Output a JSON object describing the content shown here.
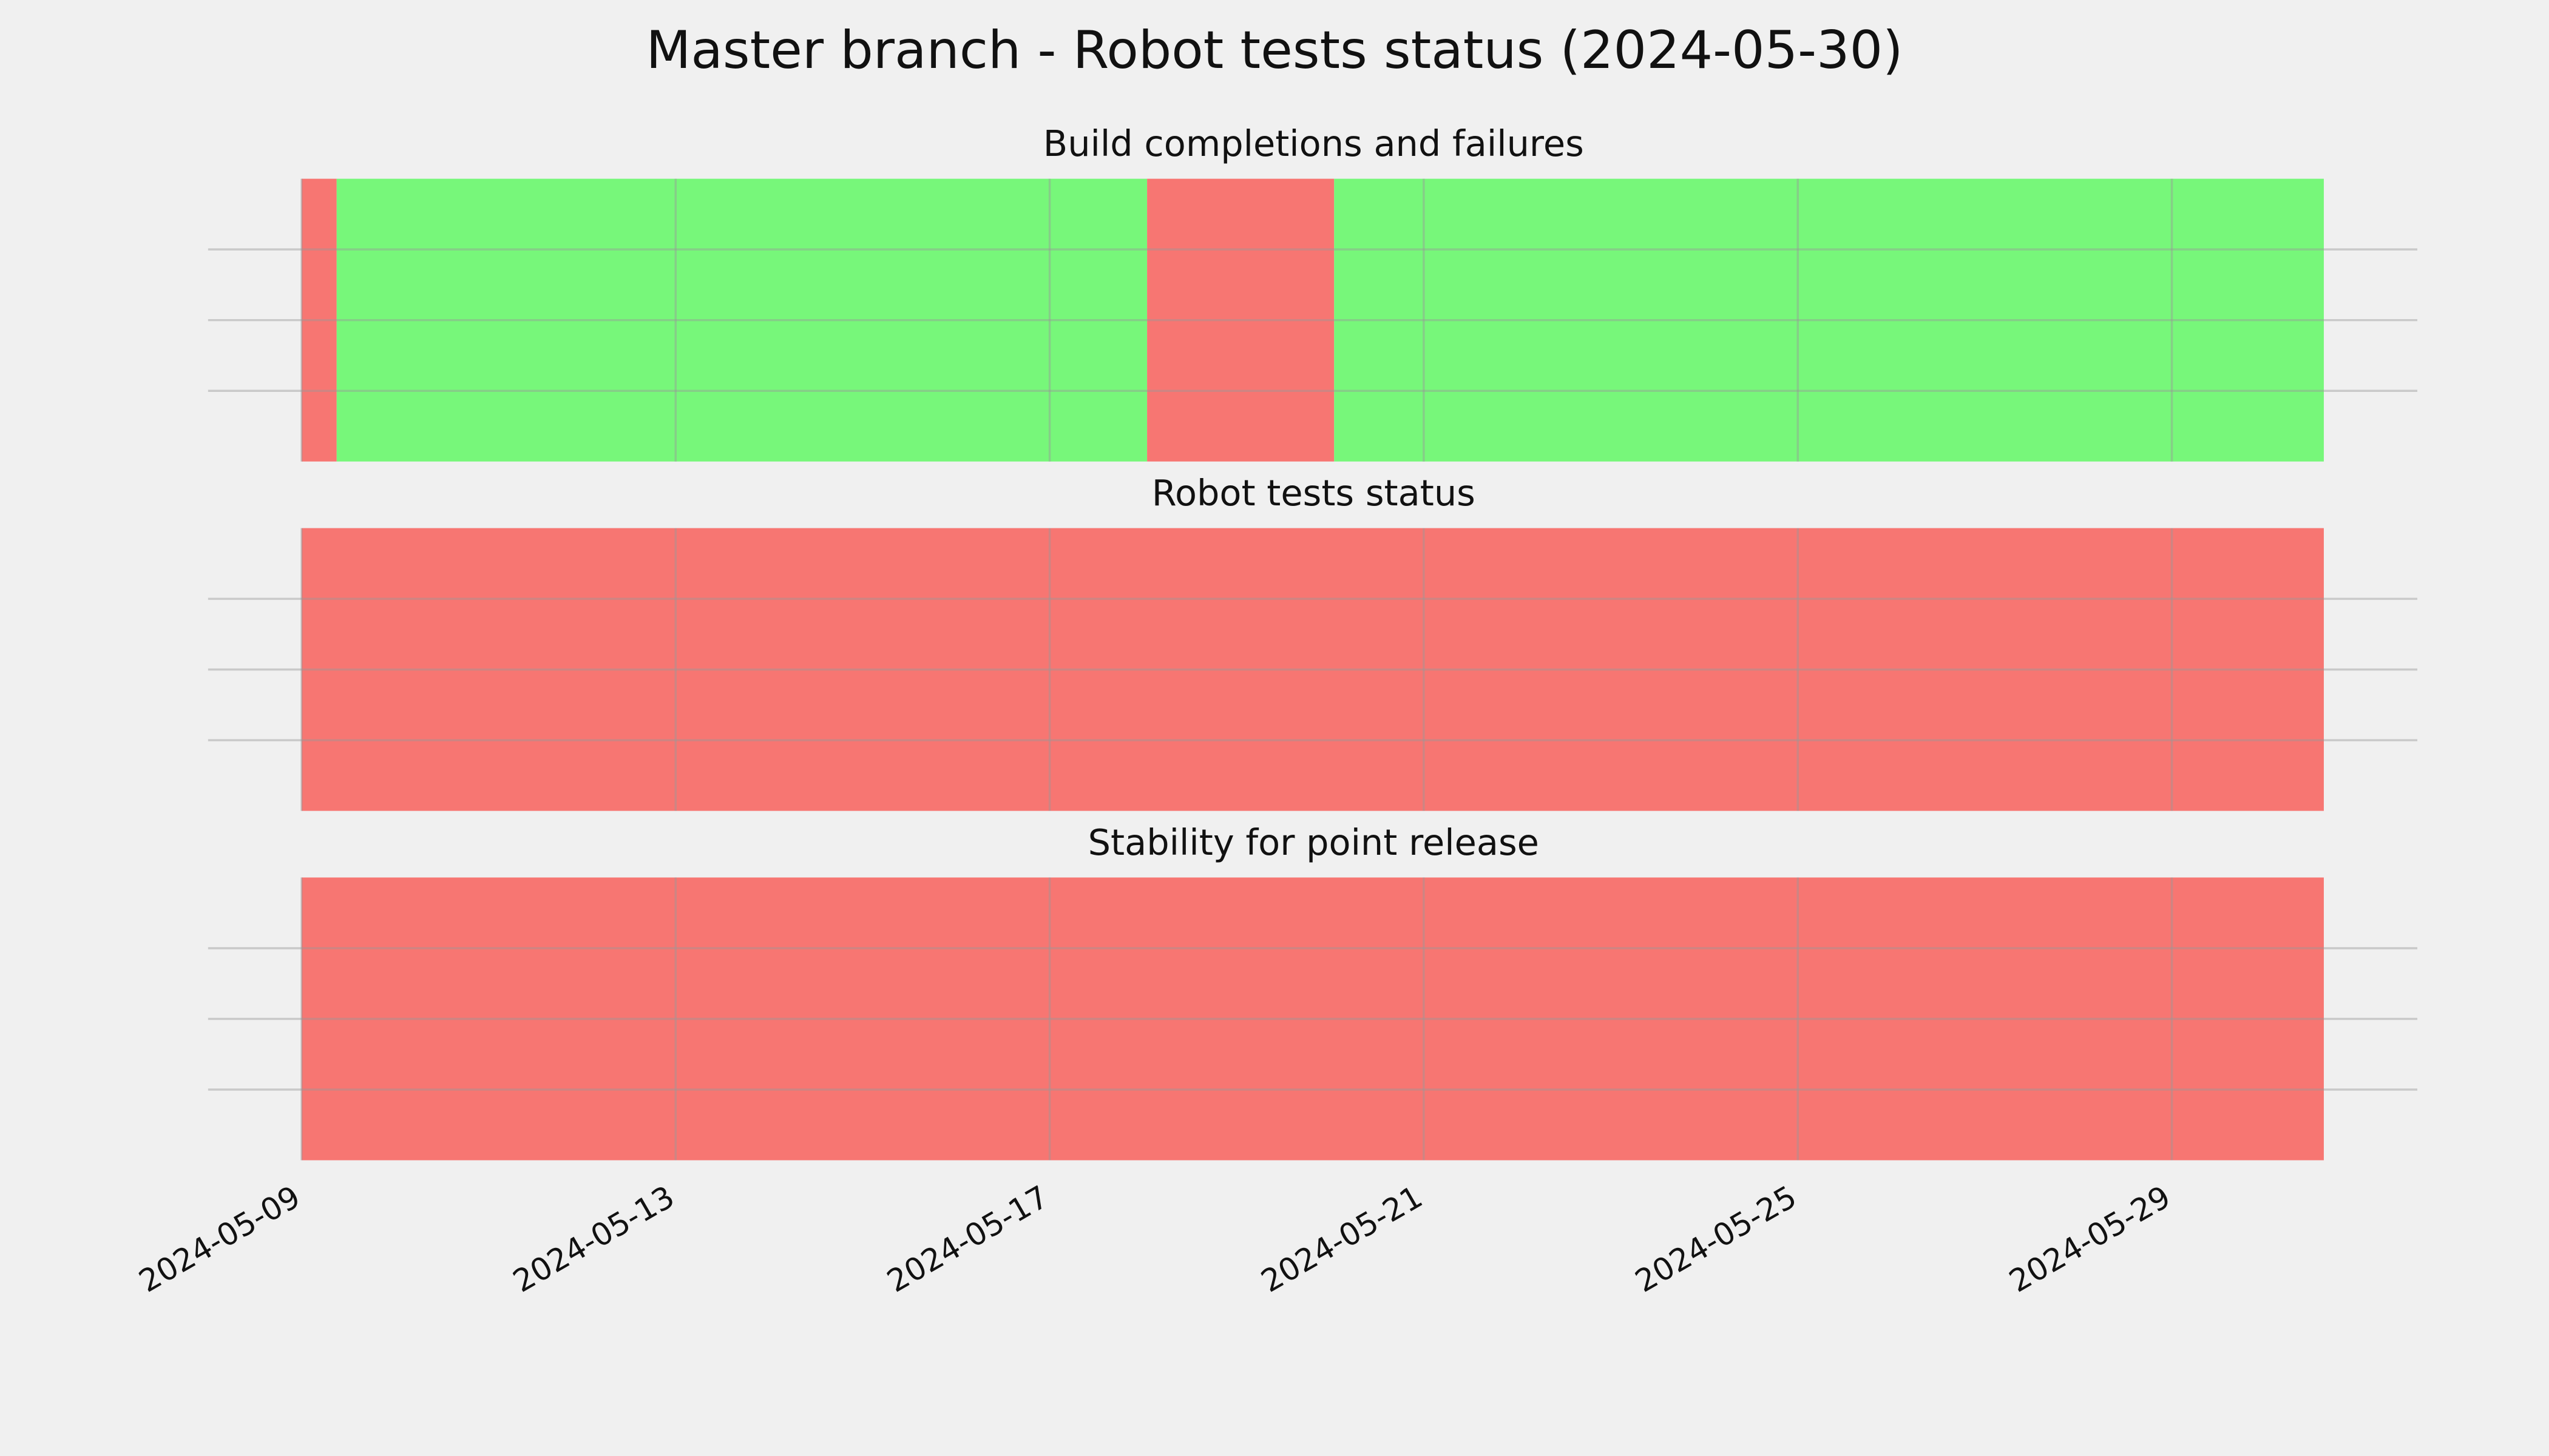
{
  "title": "Master branch - Robot tests status (2024-05-30)",
  "chart_data": [
    {
      "type": "timeline",
      "title": "Build completions and failures",
      "segments": [
        {
          "start": "2024-05-09T00:00",
          "end": "2024-05-09T09:00",
          "color": "#f77672"
        },
        {
          "start": "2024-05-09T09:00",
          "end": "2024-05-18T01:00",
          "color": "#77f77a"
        },
        {
          "start": "2024-05-18T01:00",
          "end": "2024-05-20T01:00",
          "color": "#f77672"
        },
        {
          "start": "2024-05-20T01:00",
          "end": "2024-05-30T15:00",
          "color": "#77f77a"
        }
      ],
      "xlim": [
        "2024-05-08T00:00",
        "2024-05-31T15:00"
      ],
      "xticks": [
        "2024-05-09",
        "2024-05-13",
        "2024-05-17",
        "2024-05-21",
        "2024-05-25",
        "2024-05-29"
      ],
      "xtick_labels": false,
      "ylim": [
        0,
        1
      ],
      "yticks": [
        0.25,
        0.5,
        0.75
      ],
      "grid": true
    },
    {
      "type": "timeline",
      "title": "Robot tests status",
      "segments": [
        {
          "start": "2024-05-09T00:00",
          "end": "2024-05-30T15:00",
          "color": "#f77672"
        }
      ],
      "xlim": [
        "2024-05-08T00:00",
        "2024-05-31T15:00"
      ],
      "xticks": [
        "2024-05-09",
        "2024-05-13",
        "2024-05-17",
        "2024-05-21",
        "2024-05-25",
        "2024-05-29"
      ],
      "xtick_labels": false,
      "ylim": [
        0,
        1
      ],
      "yticks": [
        0.25,
        0.5,
        0.75
      ],
      "grid": true
    },
    {
      "type": "timeline",
      "title": "Stability for point release",
      "segments": [
        {
          "start": "2024-05-09T00:00",
          "end": "2024-05-30T15:00",
          "color": "#f77672"
        }
      ],
      "xlim": [
        "2024-05-08T00:00",
        "2024-05-31T15:00"
      ],
      "xticks": [
        "2024-05-09",
        "2024-05-13",
        "2024-05-17",
        "2024-05-21",
        "2024-05-25",
        "2024-05-29"
      ],
      "xtick_labels": true,
      "ylim": [
        0,
        1
      ],
      "yticks": [
        0.25,
        0.5,
        0.75
      ],
      "grid": true
    }
  ]
}
